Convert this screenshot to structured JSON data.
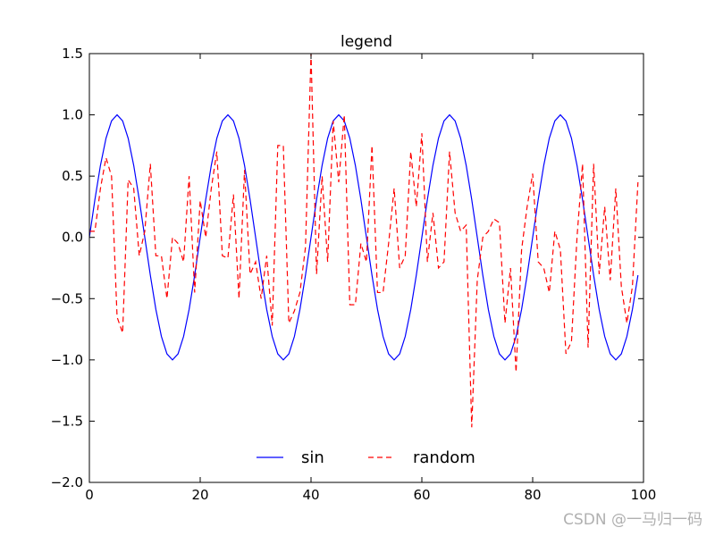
{
  "chart_data": {
    "type": "line",
    "title": "legend",
    "xlabel": "",
    "ylabel": "",
    "xlim": [
      0,
      100
    ],
    "ylim": [
      -2.0,
      1.5
    ],
    "xticks": [
      0,
      20,
      40,
      60,
      80,
      100
    ],
    "xtick_labels": [
      "0",
      "20",
      "40",
      "60",
      "80",
      "100"
    ],
    "yticks": [
      -2.0,
      -1.5,
      -1.0,
      -0.5,
      0.0,
      0.5,
      1.0,
      1.5
    ],
    "ytick_labels": [
      "−2.0",
      "−1.5",
      "−1.0",
      "−0.5",
      "0.0",
      "0.5",
      "1.0",
      "1.5"
    ],
    "grid": false,
    "legend_position": "lower-center",
    "series": [
      {
        "name": "sin",
        "color": "#0000ff",
        "linestyle": "solid",
        "x": [
          0,
          1,
          2,
          3,
          4,
          5,
          6,
          7,
          8,
          9,
          10,
          11,
          12,
          13,
          14,
          15,
          16,
          17,
          18,
          19,
          20,
          21,
          22,
          23,
          24,
          25,
          26,
          27,
          28,
          29,
          30,
          31,
          32,
          33,
          34,
          35,
          36,
          37,
          38,
          39,
          40,
          41,
          42,
          43,
          44,
          45,
          46,
          47,
          48,
          49,
          50,
          51,
          52,
          53,
          54,
          55,
          56,
          57,
          58,
          59,
          60,
          61,
          62,
          63,
          64,
          65,
          66,
          67,
          68,
          69,
          70,
          71,
          72,
          73,
          74,
          75,
          76,
          77,
          78,
          79,
          80,
          81,
          82,
          83,
          84,
          85,
          86,
          87,
          88,
          89,
          90,
          91,
          92,
          93,
          94,
          95,
          96,
          97,
          98,
          99
        ],
        "values": [
          0.0,
          0.309,
          0.588,
          0.809,
          0.951,
          1.0,
          0.951,
          0.809,
          0.588,
          0.309,
          0.0,
          -0.309,
          -0.588,
          -0.809,
          -0.951,
          -1.0,
          -0.951,
          -0.809,
          -0.588,
          -0.309,
          0.0,
          0.309,
          0.588,
          0.809,
          0.951,
          1.0,
          0.951,
          0.809,
          0.588,
          0.309,
          0.0,
          -0.309,
          -0.588,
          -0.809,
          -0.951,
          -1.0,
          -0.951,
          -0.809,
          -0.588,
          -0.309,
          0.0,
          0.309,
          0.588,
          0.809,
          0.951,
          1.0,
          0.951,
          0.809,
          0.588,
          0.309,
          0.0,
          -0.309,
          -0.588,
          -0.809,
          -0.951,
          -1.0,
          -0.951,
          -0.809,
          -0.588,
          -0.309,
          0.0,
          0.309,
          0.588,
          0.809,
          0.951,
          1.0,
          0.951,
          0.809,
          0.588,
          0.309,
          0.0,
          -0.309,
          -0.588,
          -0.809,
          -0.951,
          -1.0,
          -0.951,
          -0.809,
          -0.588,
          -0.309,
          0.0,
          0.309,
          0.588,
          0.809,
          0.951,
          1.0,
          0.951,
          0.809,
          0.588,
          0.309,
          0.0,
          -0.309,
          -0.588,
          -0.809,
          -0.951,
          -1.0,
          -0.951,
          -0.809,
          -0.588,
          -0.309
        ]
      },
      {
        "name": "random",
        "color": "#ff0000",
        "linestyle": "dashed",
        "x": [
          0,
          1,
          2,
          3,
          4,
          5,
          6,
          7,
          8,
          9,
          10,
          11,
          12,
          13,
          14,
          15,
          16,
          17,
          18,
          19,
          20,
          21,
          22,
          23,
          24,
          25,
          26,
          27,
          28,
          29,
          30,
          31,
          32,
          33,
          34,
          35,
          36,
          37,
          38,
          39,
          40,
          41,
          42,
          43,
          44,
          45,
          46,
          47,
          48,
          49,
          50,
          51,
          52,
          53,
          54,
          55,
          56,
          57,
          58,
          59,
          60,
          61,
          62,
          63,
          64,
          65,
          66,
          67,
          68,
          69,
          70,
          71,
          72,
          73,
          74,
          75,
          76,
          77,
          78,
          79,
          80,
          81,
          82,
          83,
          84,
          85,
          86,
          87,
          88,
          89,
          90,
          91,
          92,
          93,
          94,
          95,
          96,
          97,
          98,
          99
        ],
        "values": [
          0.05,
          0.05,
          0.4,
          0.65,
          0.5,
          -0.65,
          -0.78,
          0.47,
          0.4,
          -0.15,
          0.05,
          0.6,
          -0.15,
          -0.15,
          -0.5,
          0.0,
          -0.05,
          -0.2,
          0.5,
          -0.45,
          0.3,
          0.0,
          0.4,
          0.7,
          -0.15,
          -0.17,
          0.35,
          -0.5,
          0.55,
          -0.3,
          -0.2,
          -0.5,
          -0.15,
          -0.72,
          0.75,
          0.75,
          -0.7,
          -0.6,
          -0.45,
          -0.08,
          1.5,
          -0.3,
          0.5,
          -0.2,
          0.95,
          0.45,
          1.0,
          -0.55,
          -0.55,
          -0.05,
          -0.2,
          0.75,
          -0.45,
          -0.45,
          -0.05,
          0.4,
          -0.25,
          -0.15,
          0.7,
          0.25,
          0.85,
          -0.2,
          0.2,
          -0.25,
          -0.2,
          0.7,
          0.2,
          0.05,
          0.1,
          -1.55,
          -0.35,
          0.0,
          0.05,
          0.15,
          0.12,
          -0.7,
          -0.25,
          -1.1,
          -0.1,
          0.25,
          0.52,
          -0.2,
          -0.25,
          -0.45,
          0.05,
          -0.1,
          -0.95,
          -0.85,
          0.0,
          0.6,
          -0.9,
          0.6,
          -0.3,
          0.25,
          -0.35,
          0.4,
          -0.4,
          -0.7,
          -0.4,
          0.45
        ]
      }
    ]
  },
  "watermark": "CSDN @一马归一码"
}
